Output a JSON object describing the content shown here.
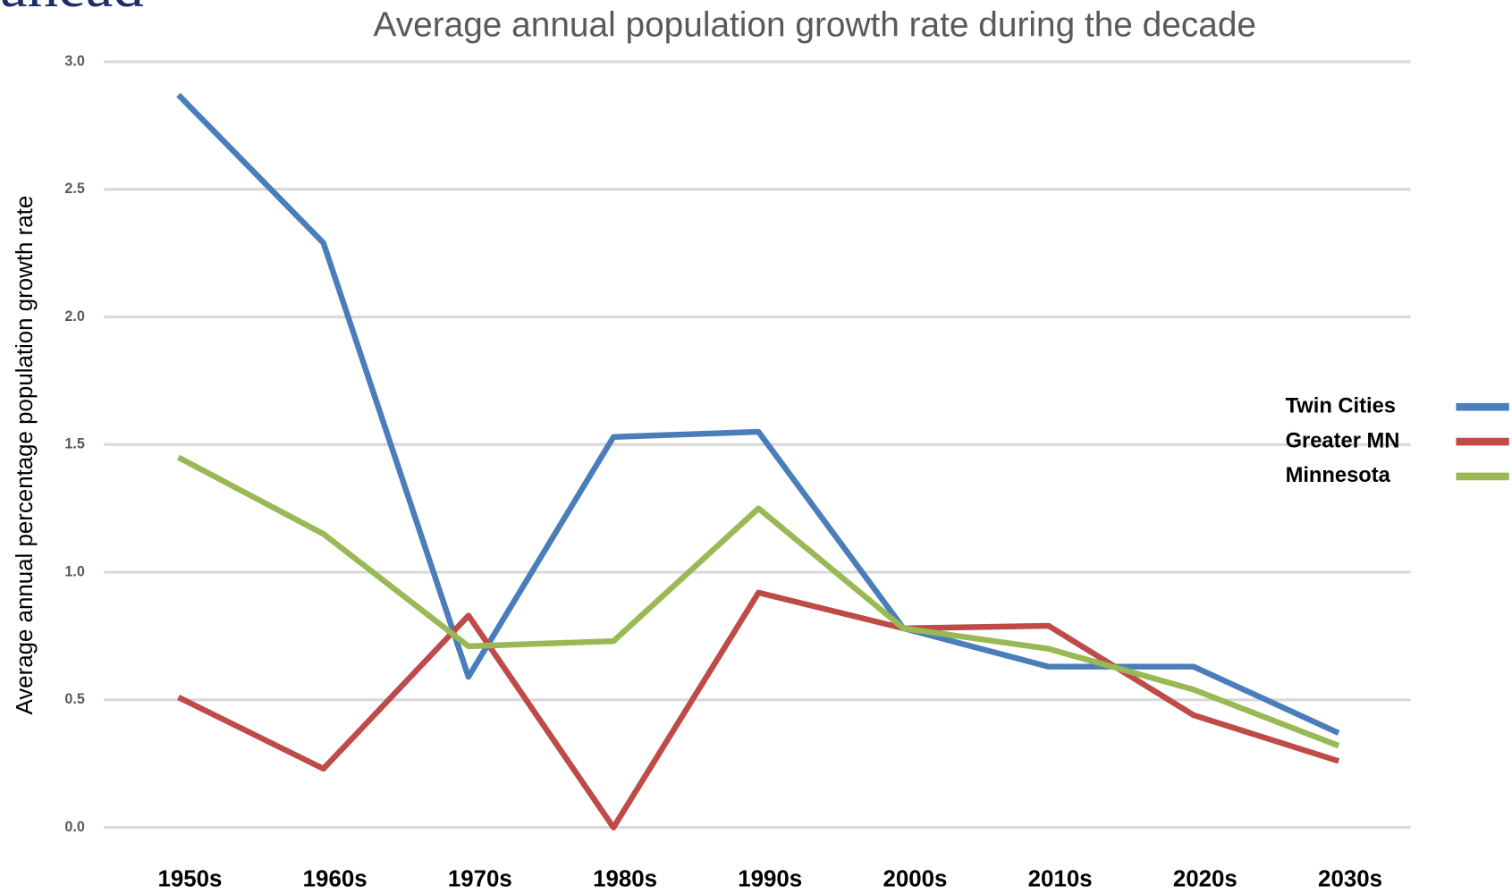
{
  "slide_title": "ahead",
  "chart_data": {
    "type": "line",
    "title": "Average annual population growth rate during the decade",
    "y_label": "Average annual percentage population growth rate",
    "categories": [
      "1950s",
      "1960s",
      "1970s",
      "1980s",
      "1990s",
      "2000s",
      "2010s",
      "2020s",
      "2030s"
    ],
    "series": [
      {
        "name": "Twin Cities",
        "color": "#4a7ebb",
        "values": [
          2.87,
          2.29,
          0.59,
          1.53,
          1.55,
          0.78,
          0.63,
          0.63,
          0.37
        ]
      },
      {
        "name": "Greater MN",
        "color": "#be4b48",
        "values": [
          0.51,
          0.23,
          0.83,
          0.0,
          0.92,
          0.78,
          0.79,
          0.44,
          0.26
        ]
      },
      {
        "name": "Minnesota",
        "color": "#98b954",
        "values": [
          1.45,
          1.15,
          0.71,
          0.73,
          1.25,
          0.78,
          0.7,
          0.54,
          0.32
        ]
      }
    ],
    "ylim": [
      0,
      3
    ],
    "yticks": [
      {
        "value": 0,
        "label": "0.0"
      },
      0.5,
      {
        "value": 1,
        "label": "1.0"
      },
      1.5,
      {
        "value": 2,
        "label": "2.0"
      },
      2.5,
      {
        "value": 3,
        "label": "3.0"
      }
    ],
    "grid": true,
    "legend": "right"
  }
}
